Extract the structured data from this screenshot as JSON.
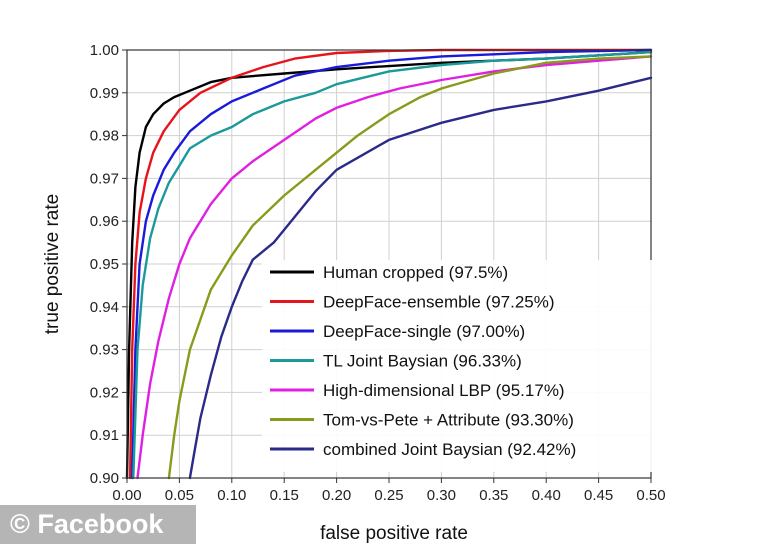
{
  "watermark": "© Facebook",
  "chart_data": {
    "type": "line",
    "title": "",
    "xlabel": "false positive rate",
    "ylabel": "true positive rate",
    "xlim": [
      0,
      0.5
    ],
    "ylim": [
      0.9,
      1.0
    ],
    "x_ticks": [
      "0.00",
      "0.05",
      "0.10",
      "0.15",
      "0.20",
      "0.25",
      "0.30",
      "0.35",
      "0.40",
      "0.45",
      "0.50"
    ],
    "y_ticks": [
      "0.90",
      "0.91",
      "0.92",
      "0.93",
      "0.94",
      "0.95",
      "0.96",
      "0.97",
      "0.98",
      "0.99",
      "1.00"
    ],
    "grid": true,
    "legend_position": "bottom-right",
    "series": [
      {
        "name": "Human cropped (97.5%)",
        "color": "#000000",
        "x": [
          0,
          0.002,
          0.005,
          0.008,
          0.012,
          0.018,
          0.025,
          0.035,
          0.045,
          0.06,
          0.08,
          0.1,
          0.15,
          0.2,
          0.3,
          0.4,
          0.5
        ],
        "y": [
          0.9,
          0.93,
          0.955,
          0.968,
          0.976,
          0.982,
          0.985,
          0.9875,
          0.989,
          0.9905,
          0.9925,
          0.9935,
          0.9945,
          0.9955,
          0.997,
          0.998,
          0.9995
        ]
      },
      {
        "name": "DeepFace-ensemble (97.25%)",
        "color": "#e8141c",
        "x": [
          0.003,
          0.005,
          0.008,
          0.012,
          0.018,
          0.025,
          0.035,
          0.05,
          0.07,
          0.1,
          0.13,
          0.16,
          0.2,
          0.25,
          0.3,
          0.4,
          0.5
        ],
        "y": [
          0.9,
          0.93,
          0.95,
          0.962,
          0.97,
          0.976,
          0.981,
          0.986,
          0.99,
          0.9935,
          0.996,
          0.998,
          0.9993,
          0.9998,
          1.0,
          1.0,
          1.0
        ]
      },
      {
        "name": "DeepFace-single (97.00%)",
        "color": "#1a1adb",
        "x": [
          0.005,
          0.008,
          0.012,
          0.018,
          0.025,
          0.035,
          0.045,
          0.06,
          0.08,
          0.1,
          0.13,
          0.16,
          0.2,
          0.25,
          0.3,
          0.35,
          0.4,
          0.5
        ],
        "y": [
          0.9,
          0.93,
          0.95,
          0.96,
          0.966,
          0.972,
          0.976,
          0.981,
          0.985,
          0.988,
          0.991,
          0.994,
          0.996,
          0.9975,
          0.9985,
          0.999,
          0.9995,
          1.0
        ]
      },
      {
        "name": "TL Joint Baysian (96.33%)",
        "color": "#1a9a9a",
        "x": [
          0.006,
          0.01,
          0.015,
          0.022,
          0.03,
          0.04,
          0.05,
          0.06,
          0.08,
          0.1,
          0.12,
          0.15,
          0.18,
          0.2,
          0.25,
          0.3,
          0.35,
          0.4,
          0.5
        ],
        "y": [
          0.9,
          0.93,
          0.945,
          0.956,
          0.963,
          0.969,
          0.973,
          0.977,
          0.98,
          0.982,
          0.985,
          0.988,
          0.99,
          0.992,
          0.995,
          0.9965,
          0.9975,
          0.998,
          0.9995
        ]
      },
      {
        "name": "High-dimensional LBP (95.17%)",
        "color": "#e020e0",
        "x": [
          0.01,
          0.015,
          0.022,
          0.03,
          0.04,
          0.05,
          0.06,
          0.08,
          0.1,
          0.12,
          0.15,
          0.18,
          0.2,
          0.23,
          0.26,
          0.3,
          0.35,
          0.4,
          0.45,
          0.5
        ],
        "y": [
          0.9,
          0.91,
          0.922,
          0.932,
          0.942,
          0.95,
          0.956,
          0.964,
          0.97,
          0.974,
          0.979,
          0.984,
          0.9865,
          0.989,
          0.991,
          0.993,
          0.995,
          0.9965,
          0.9975,
          0.9985
        ]
      },
      {
        "name": "Tom-vs-Pete + Attribute (93.30%)",
        "color": "#8a9a1a",
        "x": [
          0.04,
          0.045,
          0.05,
          0.06,
          0.07,
          0.08,
          0.1,
          0.12,
          0.15,
          0.18,
          0.2,
          0.22,
          0.25,
          0.28,
          0.3,
          0.35,
          0.4,
          0.45,
          0.5
        ],
        "y": [
          0.9,
          0.91,
          0.918,
          0.93,
          0.937,
          0.944,
          0.952,
          0.959,
          0.966,
          0.972,
          0.976,
          0.98,
          0.985,
          0.989,
          0.991,
          0.9945,
          0.997,
          0.998,
          0.9985
        ]
      },
      {
        "name": "combined Joint Baysian (92.42%)",
        "color": "#2a2a8a",
        "x": [
          0.06,
          0.065,
          0.07,
          0.08,
          0.09,
          0.1,
          0.11,
          0.12,
          0.14,
          0.16,
          0.18,
          0.2,
          0.25,
          0.3,
          0.35,
          0.4,
          0.45,
          0.5
        ],
        "y": [
          0.9,
          0.907,
          0.914,
          0.924,
          0.933,
          0.94,
          0.946,
          0.951,
          0.955,
          0.961,
          0.967,
          0.972,
          0.979,
          0.983,
          0.986,
          0.988,
          0.9905,
          0.9935
        ]
      }
    ]
  }
}
